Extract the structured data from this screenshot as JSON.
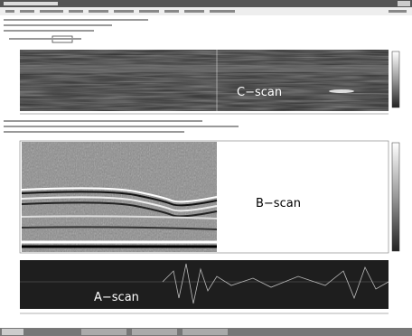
{
  "panels": {
    "c_scan": {
      "label": "C−scan"
    },
    "b_scan": {
      "label": "B−scan"
    },
    "a_scan": {
      "label": "A−scan"
    }
  }
}
